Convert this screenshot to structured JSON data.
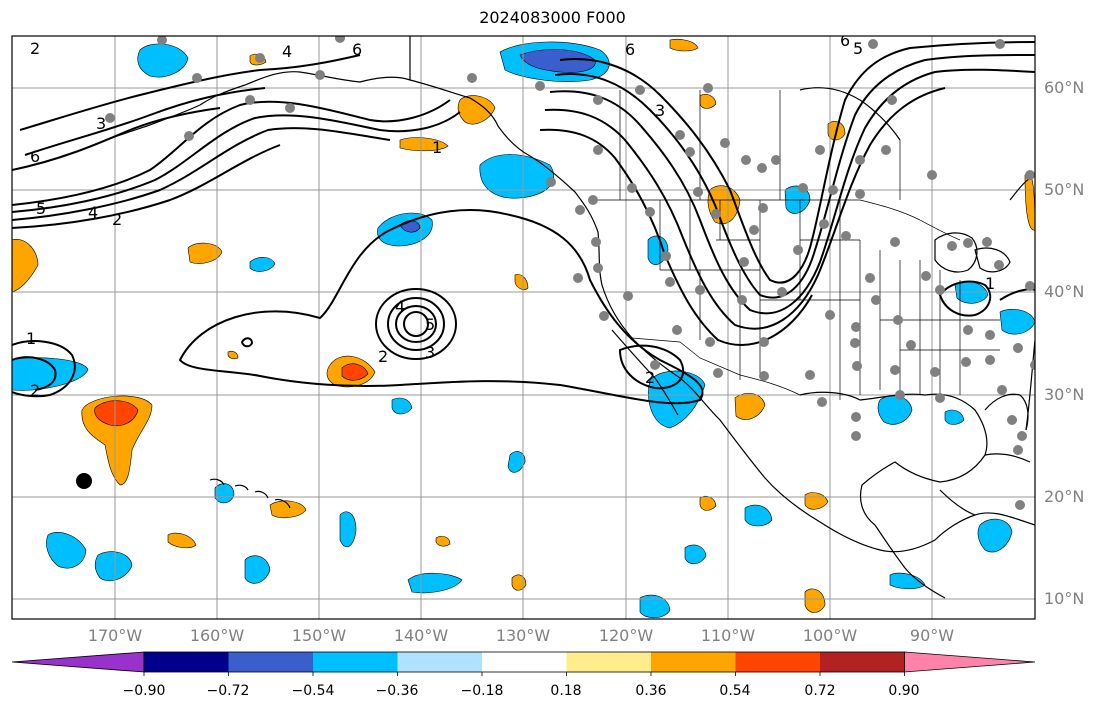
{
  "title": "2024083000 F000",
  "latitude_labels": [
    "60°N",
    "50°N",
    "40°N",
    "30°N",
    "20°N",
    "10°N"
  ],
  "longitude_labels": [
    "170°W",
    "160°W",
    "150°W",
    "140°W",
    "130°W",
    "120°W",
    "110°W",
    "100°W",
    "90°W"
  ],
  "contour_labels": [
    "2",
    "4",
    "6",
    "3",
    "6",
    "5",
    "4",
    "2",
    "6",
    "3",
    "1",
    "6",
    "5",
    "4",
    "5",
    "3",
    "2",
    "1",
    "2",
    "2",
    "1"
  ],
  "colorbar": {
    "tick_labels": [
      "−0.90",
      "−0.72",
      "−0.54",
      "−0.36",
      "−0.18",
      "0.18",
      "0.36",
      "0.54",
      "0.72",
      "0.90"
    ],
    "colors": [
      "#9932cc",
      "#00008b",
      "#3a5fcd",
      "#00bfff",
      "#b0e2ff",
      "#ffffff",
      "#ffec8b",
      "#ffa500",
      "#ff4500",
      "#b22222",
      "#ff82ab"
    ]
  },
  "station_marker_color": "#808080"
}
